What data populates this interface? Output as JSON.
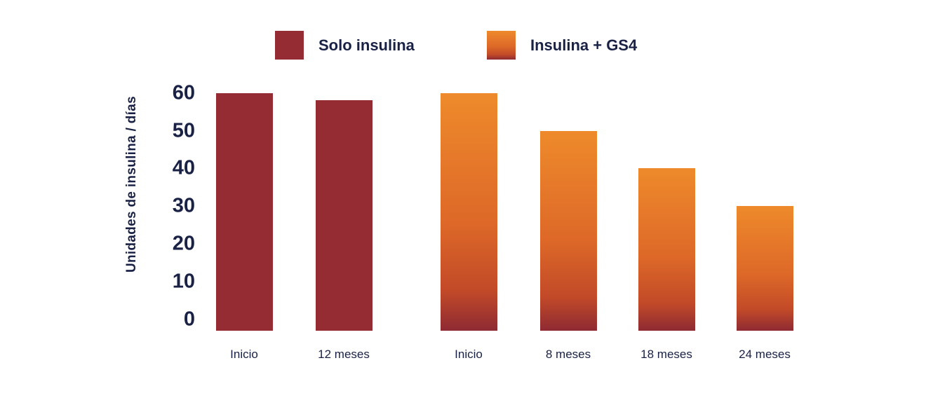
{
  "chart_data": {
    "type": "bar",
    "title": "",
    "ylabel": "Unidades de insulina / días",
    "xlabel": "",
    "ylim": [
      0,
      60
    ],
    "yticks": [
      60,
      50,
      40,
      30,
      20,
      10,
      0
    ],
    "grid": false,
    "legend_position": "top",
    "categories": [
      "Inicio",
      "12 meses",
      "Inicio",
      "8 meses",
      "18 meses",
      "24 meses"
    ],
    "series": [
      {
        "name": "Solo insulina",
        "fill": "solid-red",
        "color": "#952B33",
        "points": [
          {
            "x": "Inicio",
            "y": 60
          },
          {
            "x": "12 meses",
            "y": 58
          }
        ]
      },
      {
        "name": "Insulina + GS4",
        "fill": "orange-gradient",
        "gradient": [
          "#EE8A2B",
          "#DD6828",
          "#C24A28",
          "#8E2A33"
        ],
        "points": [
          {
            "x": "Inicio",
            "y": 60
          },
          {
            "x": "8 meses",
            "y": 50
          },
          {
            "x": "18 meses",
            "y": 40
          },
          {
            "x": "24 meses",
            "y": 30
          }
        ]
      }
    ]
  },
  "colors": {
    "background": "#FFFFFF",
    "text_navy": "#192145",
    "bar_red": "#952B33",
    "bar_orange_top": "#EE8A2B",
    "bar_orange_bottom": "#8E2A33"
  }
}
